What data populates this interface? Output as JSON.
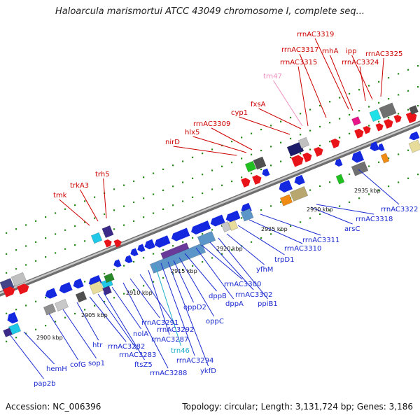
{
  "title": "Haloarcula marismortui ATCC 43049 chromosome I, complete seq...",
  "footer": {
    "accession": "Accession: NC_006396",
    "topology": "Topology: circular; Length: 3,131,724 bp; Genes: 3,186"
  },
  "colors": {
    "forward_gene": "#e8141a",
    "reverse_gene": "#1428e0",
    "backbone": "#8a8a8a",
    "tick_dot": "#2a8a1e",
    "rrna_label": "#cc0000",
    "trna_label_top": "#f090c0",
    "trna_label_bottom": "#20b0c8",
    "reverse_label": "#1a2ad0"
  },
  "scale_labels": [
    "2900 kbp",
    "2905 kbp",
    "2910 kbp",
    "2915 kbp",
    "2920 kbp",
    "2925 kbp",
    "2930 kbp",
    "2935 kbp"
  ],
  "top_labels": [
    {
      "text": "tmk",
      "color": "#cc0000"
    },
    {
      "text": "trkA3",
      "color": "#cc0000"
    },
    {
      "text": "trh5",
      "color": "#cc0000"
    },
    {
      "text": "nirD",
      "color": "#cc0000"
    },
    {
      "text": "hlx5",
      "color": "#cc0000"
    },
    {
      "text": "rrnAC3309",
      "color": "#cc0000"
    },
    {
      "text": "cyp1",
      "color": "#cc0000"
    },
    {
      "text": "fxsA",
      "color": "#cc0000"
    },
    {
      "text": "trn47",
      "color": "#f090c0"
    },
    {
      "text": "rrnAC3315",
      "color": "#cc0000"
    },
    {
      "text": "rrnAC3317",
      "color": "#cc0000"
    },
    {
      "text": "rrnAC3319",
      "color": "#cc0000"
    },
    {
      "text": "rnhA",
      "color": "#cc0000"
    },
    {
      "text": "ipp",
      "color": "#cc0000"
    },
    {
      "text": "rrnAC3324",
      "color": "#cc0000"
    },
    {
      "text": "rrnAC3325",
      "color": "#cc0000"
    }
  ],
  "bottom_labels": [
    {
      "text": "pap2b",
      "color": "#1a2ad0"
    },
    {
      "text": "hemH",
      "color": "#1a2ad0"
    },
    {
      "text": "cofG",
      "color": "#1a2ad0"
    },
    {
      "text": "sop1",
      "color": "#1a2ad0"
    },
    {
      "text": "htr",
      "color": "#1a2ad0"
    },
    {
      "text": "rrnAC3282",
      "color": "#1a2ad0"
    },
    {
      "text": "rrnAC3283",
      "color": "#1a2ad0"
    },
    {
      "text": "ftsZ5",
      "color": "#1a2ad0"
    },
    {
      "text": "nolA",
      "color": "#1a2ad0"
    },
    {
      "text": "rrnAC3288",
      "color": "#1a2ad0"
    },
    {
      "text": "rrnAC3291",
      "color": "#1a2ad0"
    },
    {
      "text": "rrnAC3292",
      "color": "#1a2ad0"
    },
    {
      "text": "rrnAC3287",
      "color": "#1a2ad0"
    },
    {
      "text": "trn46",
      "color": "#20b0c8"
    },
    {
      "text": "rrnAC3294",
      "color": "#1a2ad0"
    },
    {
      "text": "ykfD",
      "color": "#1a2ad0"
    },
    {
      "text": "oppD2",
      "color": "#1a2ad0"
    },
    {
      "text": "oppC",
      "color": "#1a2ad0"
    },
    {
      "text": "dppB",
      "color": "#1a2ad0"
    },
    {
      "text": "dppA",
      "color": "#1a2ad0"
    },
    {
      "text": "rrnAC3300",
      "color": "#1a2ad0"
    },
    {
      "text": "rrnAC3302",
      "color": "#1a2ad0"
    },
    {
      "text": "ppiB1",
      "color": "#1a2ad0"
    },
    {
      "text": "yfhM",
      "color": "#1a2ad0"
    },
    {
      "text": "trpD1",
      "color": "#1a2ad0"
    },
    {
      "text": "rrnAC3310",
      "color": "#1a2ad0"
    },
    {
      "text": "rrnAC3311",
      "color": "#1a2ad0"
    },
    {
      "text": "arsC",
      "color": "#1a2ad0"
    },
    {
      "text": "rrnAC3318",
      "color": "#1a2ad0"
    },
    {
      "text": "rrnAC3322",
      "color": "#1a2ad0"
    }
  ]
}
